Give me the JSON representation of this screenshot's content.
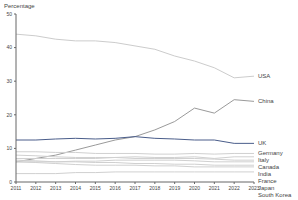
{
  "chart_data": {
    "type": "line",
    "y_label": "Percentage",
    "x": [
      2011,
      2012,
      2013,
      2014,
      2015,
      2016,
      2017,
      2018,
      2019,
      2020,
      2021,
      2022,
      2023
    ],
    "xlim": [
      2011,
      2023
    ],
    "xticks": [
      2011,
      2012,
      2013,
      2014,
      2015,
      2016,
      2017,
      2018,
      2019,
      2020,
      2021,
      2022,
      2023
    ],
    "ylim": [
      0,
      50
    ],
    "yticks": [
      0,
      10,
      20,
      30,
      40,
      50
    ],
    "grid": false,
    "series": [
      {
        "name": "USA",
        "color": "#cccccc",
        "values": [
          44,
          43.5,
          42.5,
          42,
          42,
          41.5,
          40.5,
          39.5,
          37.5,
          36,
          34,
          31,
          31.5
        ]
      },
      {
        "name": "China",
        "color": "#9a9a9a",
        "values": [
          6,
          7,
          8,
          9.5,
          11,
          12.5,
          13.5,
          15.5,
          18,
          22,
          20.5,
          24.5,
          24
        ]
      },
      {
        "name": "UK",
        "color": "#4a5d8a",
        "values": [
          12.5,
          12.5,
          12.8,
          13,
          12.8,
          13,
          13.5,
          13,
          12.8,
          12.5,
          12.5,
          11.5,
          11.5
        ]
      },
      {
        "name": "Germany",
        "color": "#d0d0d0",
        "values": [
          9,
          9,
          8.8,
          8.8,
          8.5,
          8.5,
          8.5,
          8.3,
          8.3,
          8.5,
          8.3,
          8.5,
          8.5
        ]
      },
      {
        "name": "Italy",
        "color": "#d0d0d0",
        "values": [
          7,
          7,
          7,
          7,
          7,
          7.3,
          7.5,
          7.3,
          7.3,
          7.5,
          7,
          7.5,
          7.5
        ]
      },
      {
        "name": "Canada",
        "color": "#d0d0d0",
        "values": [
          8,
          7.8,
          7.5,
          7.3,
          7.3,
          7.3,
          7,
          7,
          7,
          7,
          6.8,
          6.5,
          6.5
        ]
      },
      {
        "name": "India",
        "color": "#d0d0d0",
        "values": [
          6,
          6,
          6,
          6.2,
          6.2,
          6.5,
          6.5,
          6.5,
          6.5,
          6.3,
          6,
          6,
          6
        ]
      },
      {
        "name": "France",
        "color": "#d0d0d0",
        "values": [
          6.5,
          6.3,
          6,
          6,
          5.8,
          5.8,
          5.5,
          5.5,
          5.3,
          5.3,
          5,
          5,
          5
        ]
      },
      {
        "name": "Japan",
        "color": "#d0d0d0",
        "values": [
          6,
          5.8,
          5.5,
          5.2,
          5,
          5,
          5,
          4.8,
          4.8,
          4.5,
          4.5,
          4.5,
          4.5
        ]
      },
      {
        "name": "South Korea",
        "color": "#d0d0d0",
        "values": [
          2.5,
          2.5,
          2.5,
          2.8,
          2.8,
          3,
          3,
          3,
          3,
          3,
          3,
          3,
          3
        ]
      }
    ]
  }
}
